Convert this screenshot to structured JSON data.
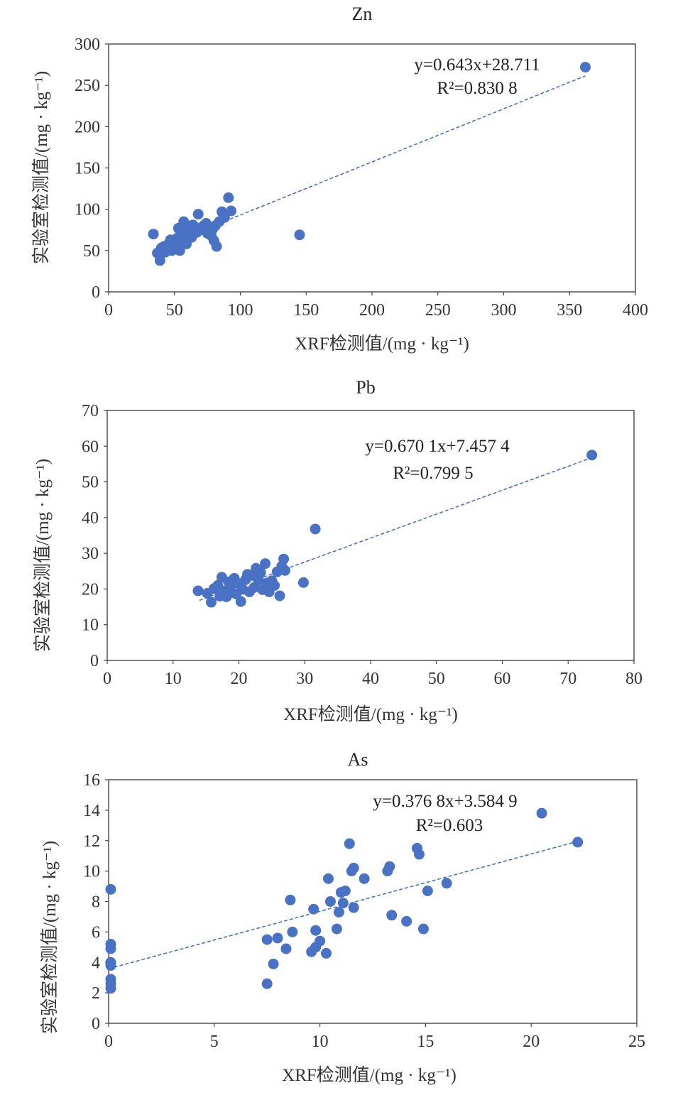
{
  "chart_data": [
    {
      "type": "scatter",
      "title": "Zn",
      "xlabel": "XRF检测值/(mg · kg⁻¹)",
      "ylabel": "实验室检测值/(mg · kg⁻¹)",
      "xlim": [
        0,
        400
      ],
      "ylim": [
        0,
        300
      ],
      "xticks": [
        "0",
        "50",
        "100",
        "150",
        "200",
        "250",
        "300",
        "350",
        "400"
      ],
      "yticks": [
        "0",
        "50",
        "100",
        "150",
        "200",
        "250",
        "300"
      ],
      "equation": "y=0.643x+28.711",
      "r2": "R²=0.830 8",
      "trend": {
        "slope": 0.643,
        "intercept": 28.711,
        "x_from": 40,
        "x_to": 362
      },
      "grid": false,
      "points": [
        [
          34,
          70
        ],
        [
          37,
          47
        ],
        [
          39,
          38
        ],
        [
          40,
          53
        ],
        [
          42,
          55
        ],
        [
          43,
          48
        ],
        [
          45,
          52
        ],
        [
          46,
          59
        ],
        [
          47,
          63
        ],
        [
          48,
          50
        ],
        [
          50,
          55
        ],
        [
          52,
          65
        ],
        [
          53,
          77
        ],
        [
          54,
          50
        ],
        [
          55,
          70
        ],
        [
          56,
          60
        ],
        [
          57,
          85
        ],
        [
          58,
          62
        ],
        [
          59,
          58
        ],
        [
          60,
          80
        ],
        [
          61,
          67
        ],
        [
          62,
          74
        ],
        [
          63,
          66
        ],
        [
          64,
          81
        ],
        [
          66,
          78
        ],
        [
          67,
          72
        ],
        [
          68,
          94
        ],
        [
          70,
          75
        ],
        [
          72,
          80
        ],
        [
          74,
          83
        ],
        [
          75,
          71
        ],
        [
          76,
          79
        ],
        [
          77,
          73
        ],
        [
          78,
          68
        ],
        [
          79,
          76
        ],
        [
          80,
          62
        ],
        [
          81,
          80
        ],
        [
          82,
          55
        ],
        [
          84,
          85
        ],
        [
          86,
          97
        ],
        [
          88,
          90
        ],
        [
          91,
          114
        ],
        [
          93,
          98
        ],
        [
          145,
          69
        ],
        [
          362,
          272
        ]
      ]
    },
    {
      "type": "scatter",
      "title": "Pb",
      "xlabel": "XRF检测值/(mg · kg⁻¹)",
      "ylabel": "实验室检测值/(mg · kg⁻¹)",
      "xlim": [
        0,
        80
      ],
      "ylim": [
        0,
        70
      ],
      "xticks": [
        "0",
        "10",
        "20",
        "30",
        "40",
        "50",
        "60",
        "70",
        "80"
      ],
      "yticks": [
        "0",
        "10",
        "20",
        "30",
        "40",
        "50",
        "60",
        "70"
      ],
      "equation": "y=0.670 1x+7.457 4",
      "r2": "R²=0.799 5",
      "trend": {
        "slope": 0.6701,
        "intercept": 7.4574,
        "x_from": 14,
        "x_to": 73.6
      },
      "grid": false,
      "points": [
        [
          13.8,
          19.5
        ],
        [
          15.2,
          18.8
        ],
        [
          15.8,
          16.3
        ],
        [
          16.2,
          20.1
        ],
        [
          16.8,
          21.0
        ],
        [
          17.1,
          18.0
        ],
        [
          17.4,
          23.3
        ],
        [
          17.8,
          19.4
        ],
        [
          18.1,
          17.8
        ],
        [
          18.4,
          22.0
        ],
        [
          18.7,
          20.7
        ],
        [
          19.0,
          19.0
        ],
        [
          19.3,
          23.0
        ],
        [
          19.6,
          18.6
        ],
        [
          20.0,
          21.5
        ],
        [
          20.3,
          16.5
        ],
        [
          20.6,
          19.9
        ],
        [
          21.0,
          22.6
        ],
        [
          21.3,
          24.1
        ],
        [
          21.6,
          19.2
        ],
        [
          22.0,
          23.8
        ],
        [
          22.3,
          20.4
        ],
        [
          22.6,
          25.8
        ],
        [
          23.0,
          22.5
        ],
        [
          23.3,
          24.6
        ],
        [
          23.6,
          19.8
        ],
        [
          24.0,
          27.1
        ],
        [
          24.3,
          21.7
        ],
        [
          24.6,
          19.2
        ],
        [
          25.0,
          22.3
        ],
        [
          25.4,
          21.0
        ],
        [
          25.8,
          24.8
        ],
        [
          26.2,
          18.1
        ],
        [
          26.5,
          26.4
        ],
        [
          26.8,
          28.4
        ],
        [
          27.0,
          25.2
        ],
        [
          29.8,
          21.8
        ],
        [
          31.6,
          36.8
        ],
        [
          73.6,
          57.5
        ]
      ]
    },
    {
      "type": "scatter",
      "title": "As",
      "xlabel": "XRF检测值/(mg · kg⁻¹)",
      "ylabel": "实验室检测值/(mg · kg⁻¹)",
      "xlim": [
        0,
        25
      ],
      "ylim": [
        0,
        16
      ],
      "xticks": [
        "0",
        "5",
        "10",
        "15",
        "20",
        "25"
      ],
      "yticks": [
        "0",
        "2",
        "4",
        "6",
        "8",
        "10",
        "12",
        "14",
        "16"
      ],
      "equation": "y=0.376 8x+3.584 9",
      "r2": "R²=0.603",
      "trend": {
        "slope": 0.3768,
        "intercept": 3.5849,
        "x_from": 0,
        "x_to": 22.2
      },
      "grid": false,
      "points": [
        [
          0.1,
          8.8
        ],
        [
          0.1,
          5.2
        ],
        [
          0.1,
          4.9
        ],
        [
          0.1,
          4.0
        ],
        [
          0.1,
          3.8
        ],
        [
          0.1,
          2.9
        ],
        [
          0.1,
          2.6
        ],
        [
          0.1,
          2.3
        ],
        [
          7.5,
          5.5
        ],
        [
          7.5,
          2.6
        ],
        [
          7.8,
          3.9
        ],
        [
          8.0,
          5.6
        ],
        [
          8.4,
          4.9
        ],
        [
          8.6,
          8.1
        ],
        [
          8.7,
          6.0
        ],
        [
          9.6,
          4.7
        ],
        [
          9.7,
          7.5
        ],
        [
          9.8,
          5.0
        ],
        [
          9.8,
          6.1
        ],
        [
          10.0,
          5.4
        ],
        [
          10.3,
          4.6
        ],
        [
          10.4,
          9.5
        ],
        [
          10.5,
          8.0
        ],
        [
          10.8,
          6.2
        ],
        [
          10.9,
          7.3
        ],
        [
          11.0,
          8.6
        ],
        [
          11.1,
          7.9
        ],
        [
          11.2,
          8.7
        ],
        [
          11.4,
          11.8
        ],
        [
          11.5,
          10.0
        ],
        [
          11.6,
          7.6
        ],
        [
          11.6,
          10.2
        ],
        [
          12.1,
          9.5
        ],
        [
          13.2,
          10.0
        ],
        [
          13.3,
          10.3
        ],
        [
          13.4,
          7.1
        ],
        [
          14.1,
          6.7
        ],
        [
          14.6,
          11.5
        ],
        [
          14.7,
          11.1
        ],
        [
          14.9,
          6.2
        ],
        [
          15.1,
          8.7
        ],
        [
          16.0,
          9.2
        ],
        [
          20.5,
          13.8
        ],
        [
          22.2,
          11.9
        ]
      ]
    }
  ]
}
